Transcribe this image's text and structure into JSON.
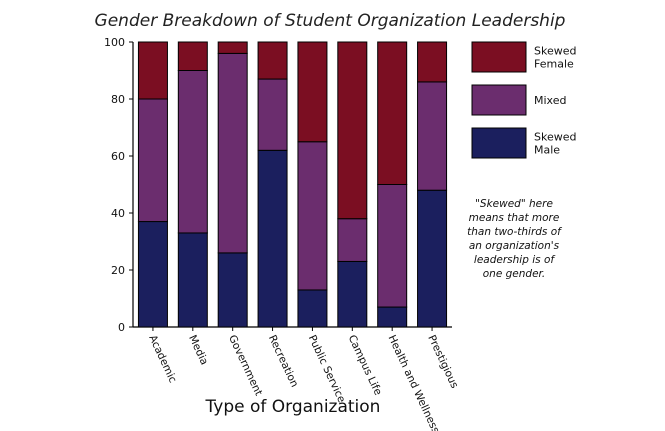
{
  "chart_data": {
    "type": "bar",
    "stacked": true,
    "title": "Gender Breakdown of Student Organization Leadership",
    "xlabel": "Type of Organization",
    "ylabel": "",
    "ylim": [
      0,
      100
    ],
    "yticks": [
      "0",
      "20",
      "40",
      "60",
      "80",
      "100"
    ],
    "categories": [
      "Academic",
      "Media",
      "Government",
      "Recreation",
      "Public Service",
      "Campus Life",
      "Health and Wellness",
      "Prestigious"
    ],
    "series": [
      {
        "name": "Skewed Male",
        "color": "#1b1f5e",
        "values": [
          37,
          33,
          26,
          62,
          13,
          23,
          7,
          48
        ]
      },
      {
        "name": "Mixed",
        "color": "#6b2d6e",
        "values": [
          43,
          57,
          70,
          25,
          52,
          15,
          43,
          38
        ]
      },
      {
        "name": "Skewed Female",
        "color": "#7b0e22",
        "values": [
          20,
          10,
          4,
          13,
          35,
          62,
          50,
          14
        ]
      }
    ],
    "legend": {
      "position": "right",
      "items": [
        {
          "label_lines": [
            "Skewed",
            "Female"
          ],
          "color": "#7b0e22"
        },
        {
          "label_lines": [
            "Mixed"
          ],
          "color": "#6b2d6e"
        },
        {
          "label_lines": [
            "Skewed",
            "Male"
          ],
          "color": "#1b1f5e"
        }
      ]
    },
    "annotation_lines": [
      "\"Skewed\" here",
      "means that more",
      "than two-thirds of",
      "an organization's",
      "leadership is of",
      "one gender."
    ]
  }
}
